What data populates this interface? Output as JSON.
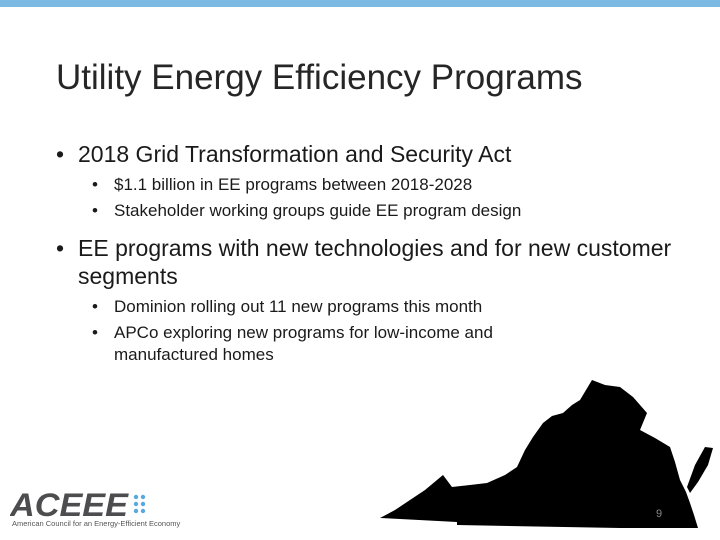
{
  "slide": {
    "title": "Utility Energy Efficiency Programs",
    "bullets": [
      {
        "text": "2018 Grid Transformation and Security Act",
        "sub": [
          "$1.1 billion in EE programs between 2018-2028",
          "Stakeholder working groups guide EE program design"
        ]
      },
      {
        "text": "EE programs with new technologies and for new customer segments",
        "sub": [
          "Dominion rolling out 11 new programs this month",
          "APCo exploring new programs for low-income and manufactured homes"
        ]
      }
    ],
    "page_number": "9"
  },
  "logo": {
    "name": "ACEEE",
    "tagline": "American Council for an Energy-Efficient Economy"
  },
  "colors": {
    "accent": "#7cb9e3",
    "logo_gray": "#4d4d4f",
    "logo_dots": "#5aa8e0"
  }
}
